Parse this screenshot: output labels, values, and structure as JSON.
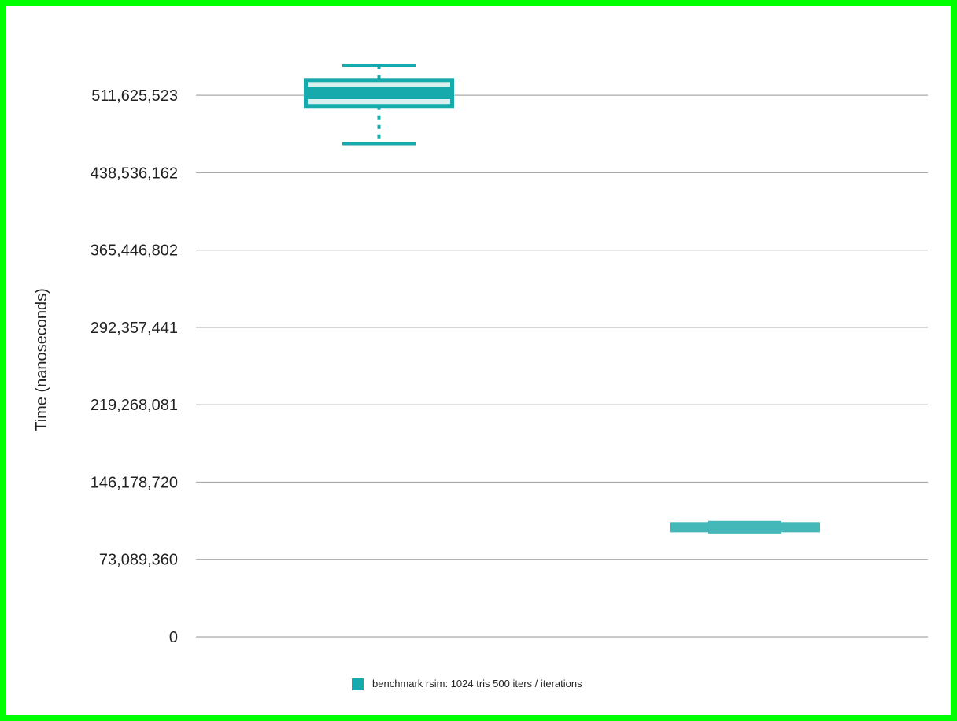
{
  "colors": {
    "frame": "#00ff00",
    "grid": "#aaaaaa",
    "series_1": "#16aaac",
    "series_2": "#44b8b8",
    "box_fill": "#d8f0f0"
  },
  "chart_data": {
    "type": "box",
    "ylabel": "Time (nanoseconds)",
    "ylim": [
      0,
      548170203
    ],
    "yticks": [
      0,
      73089360,
      146178720,
      219268081,
      292357441,
      365446802,
      438536162,
      511625523
    ],
    "ytick_labels": [
      "0",
      "73,089,360",
      "146,178,720",
      "219,268,081",
      "292,357,441",
      "365,446,802",
      "438,536,162",
      "511,625,523"
    ],
    "grid": true,
    "legend_position": "bottom",
    "legend": [
      "benchmark rsim: 1024 tris 500 iters / iterations"
    ],
    "boxes": [
      {
        "color": "#16aaac",
        "whisker_low": 466000000,
        "q1": 501500000,
        "mean_low": 508000000,
        "median": 514000000,
        "mean_high": 519500000,
        "q3": 526000000,
        "whisker_high": 540000000
      },
      {
        "color": "#44b8b8",
        "whisker_low": 99000000,
        "q1": 100500000,
        "median": 103500000,
        "q3": 106500000,
        "whisker_high": 108000000
      }
    ]
  }
}
